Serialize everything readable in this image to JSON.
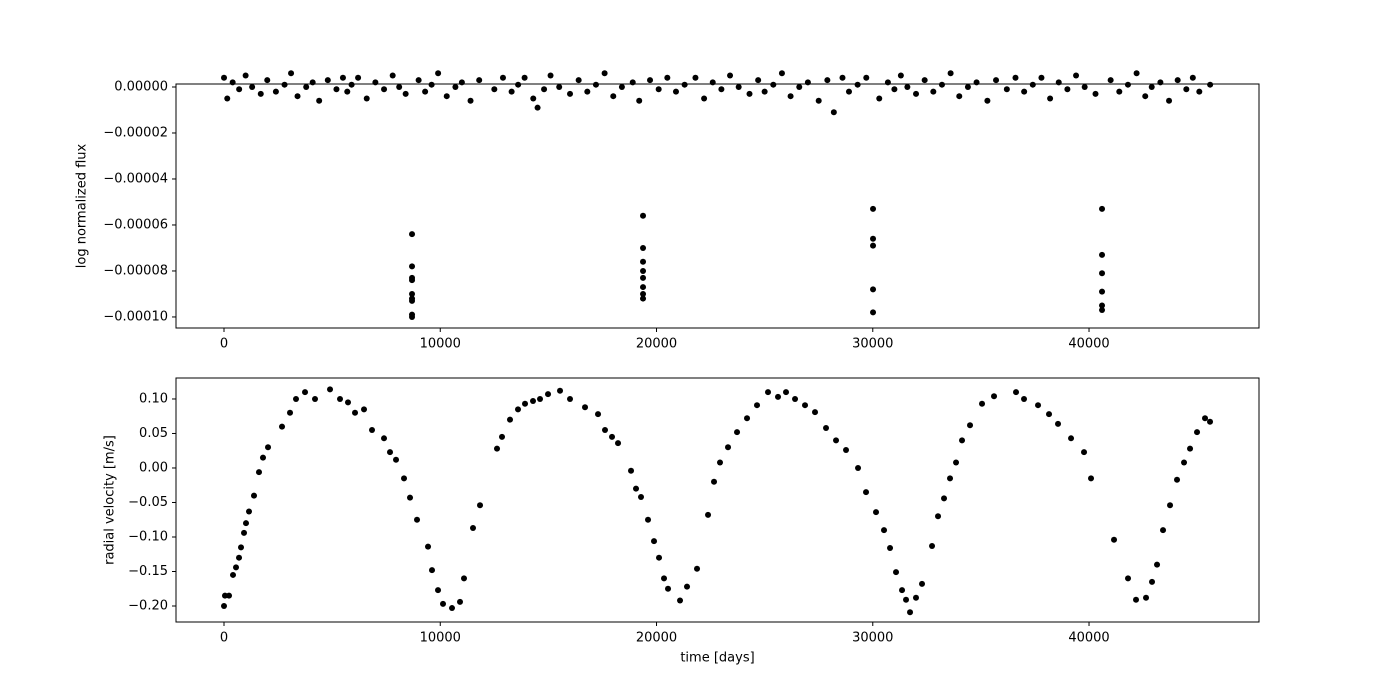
{
  "chart_data": [
    {
      "type": "scatter",
      "ylabel": "log normalized flux",
      "color": "#000000",
      "xlim": [
        -2220,
        47860
      ],
      "ylim": [
        -0.0001048,
        1.3e-06
      ],
      "xticks": [
        0,
        10000,
        20000,
        30000,
        40000
      ],
      "yticks": [
        {
          "value": 0,
          "label": "0.00000"
        },
        {
          "value": -2e-05,
          "label": "−0.00002"
        },
        {
          "value": -4e-05,
          "label": "−0.00004"
        },
        {
          "value": -6e-05,
          "label": "−0.00006"
        },
        {
          "value": -8e-05,
          "label": "−0.00008"
        },
        {
          "value": -0.0001,
          "label": "−0.00010"
        }
      ],
      "x": [
        0,
        150,
        400,
        700,
        1000,
        1300,
        1700,
        2000,
        2400,
        2800,
        3100,
        3400,
        3800,
        4100,
        4400,
        4800,
        5200,
        5500,
        5700,
        5900,
        6200,
        6600,
        7000,
        7400,
        7800,
        8100,
        8400,
        9000,
        9300,
        9600,
        9900,
        10300,
        10700,
        11000,
        11400,
        11800,
        12500,
        12900,
        13300,
        13600,
        13900,
        14300,
        14500,
        14800,
        15100,
        15500,
        16000,
        16400,
        16800,
        17200,
        17600,
        18000,
        18400,
        18900,
        19200,
        19700,
        20100,
        20500,
        20900,
        21300,
        21800,
        22200,
        22600,
        23000,
        23400,
        23800,
        24300,
        24700,
        25000,
        25400,
        25800,
        26200,
        26600,
        27000,
        27500,
        27900,
        28200,
        28600,
        28900,
        29300,
        29700,
        30300,
        30700,
        31000,
        31300,
        31600,
        32000,
        32400,
        32800,
        33200,
        33600,
        34000,
        34400,
        34800,
        35300,
        35700,
        36200,
        36600,
        37000,
        37400,
        37800,
        38200,
        38600,
        39000,
        39400,
        39800,
        40300,
        41000,
        41400,
        41800,
        42200,
        42600,
        42900,
        43300,
        43700,
        44100,
        44500,
        44800,
        45100,
        45600,
        8694,
        8694,
        8694,
        8694,
        8694,
        8694,
        8694,
        8694,
        8694,
        19376,
        19376,
        19376,
        19376,
        19376,
        19376,
        19376,
        19376,
        30012,
        30012,
        30012,
        30012,
        30012,
        40601,
        40601,
        40601,
        40601,
        40601,
        40601
      ],
      "values": [
        4e-06,
        -5e-06,
        2e-06,
        -1e-06,
        5e-06,
        0,
        -3e-06,
        3e-06,
        -2e-06,
        1e-06,
        6e-06,
        -4e-06,
        0,
        2e-06,
        -6e-06,
        3e-06,
        -1e-06,
        4e-06,
        -2e-06,
        1e-06,
        4e-06,
        -5e-06,
        2e-06,
        -1e-06,
        5e-06,
        0,
        -3e-06,
        3e-06,
        -2e-06,
        1e-06,
        6e-06,
        -4e-06,
        0,
        2e-06,
        -6e-06,
        3e-06,
        -1e-06,
        4e-06,
        -2e-06,
        1e-06,
        4e-06,
        -5e-06,
        -9e-06,
        -1e-06,
        5e-06,
        0,
        -3e-06,
        3e-06,
        -2e-06,
        1e-06,
        6e-06,
        -4e-06,
        0,
        2e-06,
        -6e-06,
        3e-06,
        -1e-06,
        4e-06,
        -2e-06,
        1e-06,
        4e-06,
        -5e-06,
        2e-06,
        -1e-06,
        5e-06,
        0,
        -3e-06,
        3e-06,
        -2e-06,
        1e-06,
        6e-06,
        -4e-06,
        0,
        2e-06,
        -6e-06,
        3e-06,
        -1.1e-05,
        4e-06,
        -2e-06,
        1e-06,
        4e-06,
        -5e-06,
        2e-06,
        -1e-06,
        5e-06,
        0,
        -3e-06,
        3e-06,
        -2e-06,
        1e-06,
        6e-06,
        -4e-06,
        0,
        2e-06,
        -6e-06,
        3e-06,
        -1e-06,
        4e-06,
        -2e-06,
        1e-06,
        4e-06,
        -5e-06,
        2e-06,
        -1e-06,
        5e-06,
        0,
        -3e-06,
        3e-06,
        -2e-06,
        1e-06,
        6e-06,
        -4e-06,
        0,
        2e-06,
        -6e-06,
        3e-06,
        -1e-06,
        4e-06,
        -2e-06,
        1e-06,
        -6.4e-05,
        -7.8e-05,
        -8.3e-05,
        -8.4e-05,
        -9e-05,
        -9.2e-05,
        -9.3e-05,
        -9.9e-05,
        -0.0001,
        -5.6e-05,
        -7e-05,
        -7.6e-05,
        -8e-05,
        -8.3e-05,
        -8.7e-05,
        -9e-05,
        -9.2e-05,
        -5.3e-05,
        -6.6e-05,
        -6.9e-05,
        -8.8e-05,
        -9.8e-05,
        -5.3e-05,
        -7.3e-05,
        -8.1e-05,
        -8.9e-05,
        -9.5e-05,
        -9.7e-05
      ]
    },
    {
      "type": "scatter",
      "xlabel": "time [days]",
      "ylabel": "radial velocity [m/s]",
      "color": "#000000",
      "xlim": [
        -2220,
        47860
      ],
      "ylim": [
        -0.2232,
        0.1304
      ],
      "xticks": [
        0,
        10000,
        20000,
        30000,
        40000
      ],
      "yticks": [
        {
          "value": 0.1,
          "label": "0.10"
        },
        {
          "value": 0.05,
          "label": "0.05"
        },
        {
          "value": 0,
          "label": "0.00"
        },
        {
          "value": -0.05,
          "label": "−0.05"
        },
        {
          "value": -0.1,
          "label": "−0.10"
        },
        {
          "value": -0.15,
          "label": "−0.15"
        },
        {
          "value": -0.2,
          "label": "−0.20"
        }
      ],
      "x": [
        0,
        46,
        231,
        416,
        555,
        694,
        786,
        925,
        1017,
        1156,
        1387,
        1618,
        1803,
        2035,
        2682,
        3052,
        3329,
        3746,
        4208,
        4902,
        5364,
        5734,
        6058,
        6474,
        6844,
        7399,
        7676,
        7954,
        8324,
        8601,
        8925,
        9434,
        9618,
        9896,
        10127,
        10543,
        10913,
        11098,
        11514,
        11838,
        12624,
        12855,
        13225,
        13595,
        13919,
        14289,
        14613,
        14983,
        15538,
        16000,
        16694,
        17295,
        17618,
        17942,
        18220,
        18821,
        19052,
        19283,
        19607,
        19884,
        20116,
        20347,
        20532,
        21087,
        21410,
        21873,
        22382,
        22659,
        22936,
        23306,
        23723,
        24185,
        24647,
        25156,
        25618,
        25988,
        26405,
        26867,
        27329,
        27838,
        28301,
        28763,
        29318,
        29688,
        30150,
        30520,
        30798,
        31075,
        31353,
        31538,
        31723,
        31999,
        32277,
        32740,
        33017,
        33295,
        33572,
        33850,
        34127,
        34497,
        35052,
        35607,
        36624,
        36994,
        37642,
        38150,
        38566,
        39168,
        39769,
        40092,
        41156,
        41803,
        42173,
        42636,
        42913,
        43145,
        43422,
        43746,
        44069,
        44393,
        44671,
        44994,
        45364,
        45595
      ],
      "values": [
        -0.2,
        -0.185,
        -0.185,
        -0.155,
        -0.144,
        -0.13,
        -0.115,
        -0.094,
        -0.08,
        -0.063,
        -0.04,
        -0.006,
        0.015,
        0.03,
        0.06,
        0.08,
        0.1,
        0.11,
        0.1,
        0.114,
        0.1,
        0.095,
        0.08,
        0.085,
        0.055,
        0.043,
        0.023,
        0.012,
        -0.015,
        -0.043,
        -0.075,
        -0.114,
        -0.148,
        -0.177,
        -0.197,
        -0.203,
        -0.194,
        -0.16,
        -0.087,
        -0.054,
        0.028,
        0.045,
        0.07,
        0.085,
        0.093,
        0.097,
        0.1,
        0.107,
        0.112,
        0.1,
        0.088,
        0.078,
        0.055,
        0.045,
        0.036,
        -0.004,
        -0.03,
        -0.042,
        -0.075,
        -0.106,
        -0.13,
        -0.16,
        -0.175,
        -0.192,
        -0.172,
        -0.146,
        -0.068,
        -0.02,
        0.008,
        0.03,
        0.052,
        0.072,
        0.091,
        0.11,
        0.103,
        0.11,
        0.1,
        0.091,
        0.081,
        0.058,
        0.04,
        0.026,
        0,
        -0.035,
        -0.064,
        -0.09,
        -0.116,
        -0.151,
        -0.177,
        -0.191,
        -0.209,
        -0.188,
        -0.168,
        -0.113,
        -0.07,
        -0.044,
        -0.015,
        0.008,
        0.04,
        0.062,
        0.093,
        0.104,
        0.11,
        0.1,
        0.091,
        0.078,
        0.064,
        0.043,
        0.023,
        -0.015,
        -0.104,
        -0.16,
        -0.191,
        -0.188,
        -0.165,
        -0.14,
        -0.09,
        -0.054,
        -0.017,
        0.008,
        0.028,
        0.052,
        0.072,
        0.067
      ]
    }
  ]
}
